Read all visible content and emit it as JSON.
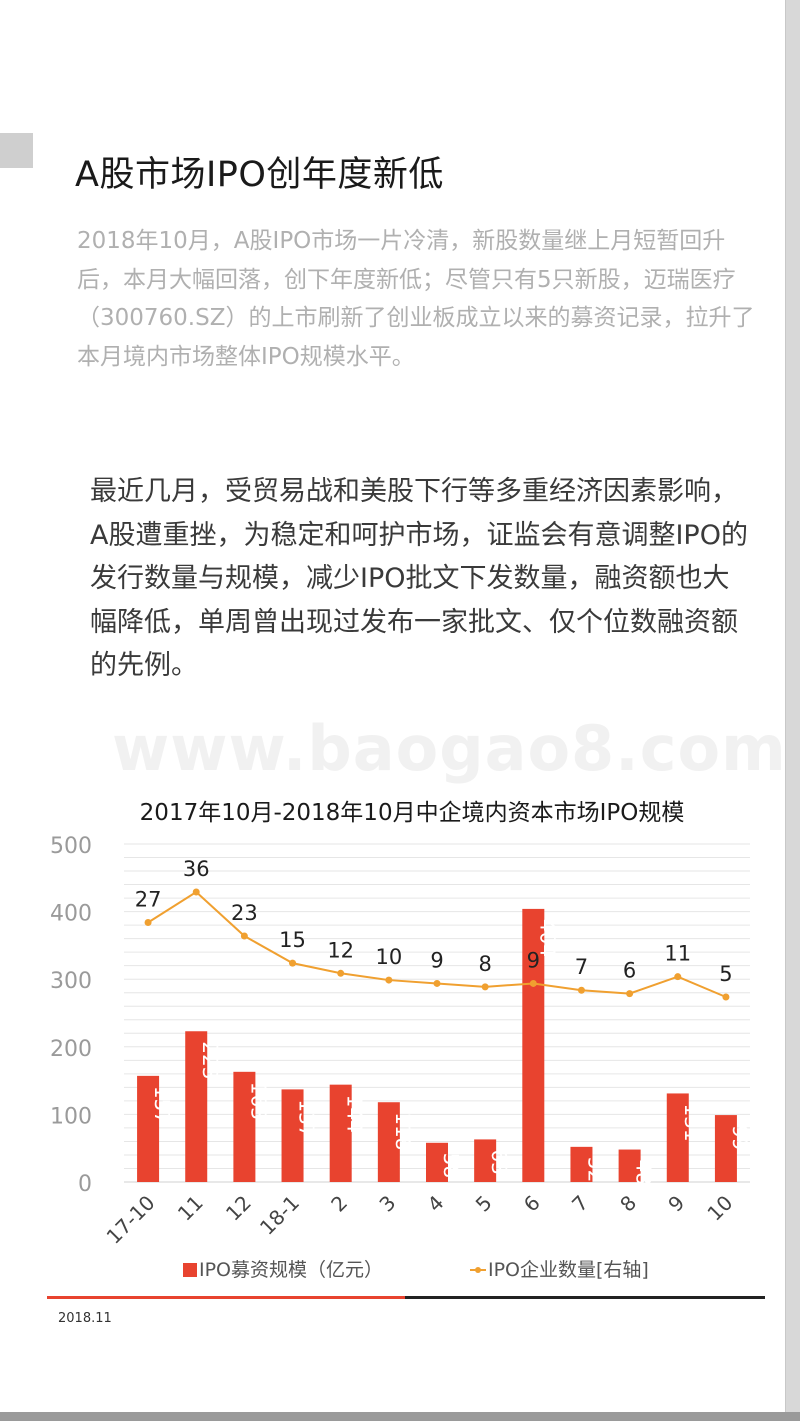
{
  "page": {
    "title": "A股市场IPO创年度新低",
    "intro": "2018年10月，A股IPO市场一片冷清，新股数量继上月短暂回升后，本月大幅回落，创下年度新低；尽管只有5只新股，迈瑞医疗（300760.SZ）的上市刷新了创业板成立以来的募资记录，拉升了本月境内市场整体IPO规模水平。",
    "body": "最近几月，受贸易战和美股下行等多重经济因素影响，A股遭重挫，为稳定和呵护市场，证监会有意调整IPO的发行数量与规模，减少IPO批文下发数量，融资额也大幅降低，单周曾出现过发布一家批文、仅个位数融资额的先例。",
    "watermark": "www.baogao8.com",
    "footer_date": "2018.11"
  },
  "colors": {
    "bar": "#e8432f",
    "line": "#f0a030",
    "gridline": "#e6e6e6",
    "axis_text": "#9a9a9a",
    "footer_red": "#e8432f",
    "footer_black": "#222222"
  },
  "chart_data": {
    "type": "bar",
    "title": "2017年10月-2018年10月中企境内资本市场IPO规模",
    "categories": [
      "17-10",
      "11",
      "12",
      "18-1",
      "2",
      "3",
      "4",
      "5",
      "6",
      "7",
      "8",
      "9",
      "10"
    ],
    "y_ticks": [
      "0",
      "100",
      "200",
      "300",
      "400",
      "500"
    ],
    "ylim": [
      0,
      500
    ],
    "grid": true,
    "legend_position": "bottom",
    "series": [
      {
        "name": "IPO募资规模（亿元）",
        "type": "bar",
        "values": [
          157,
          223,
          163,
          137,
          144,
          118,
          58,
          63,
          404,
          52,
          48,
          131,
          99
        ]
      },
      {
        "name": "IPO企业数量[右轴]",
        "type": "line",
        "axis": "right",
        "values": [
          27,
          36,
          23,
          15,
          12,
          10,
          9,
          8,
          9,
          7,
          6,
          11,
          5
        ]
      }
    ]
  }
}
